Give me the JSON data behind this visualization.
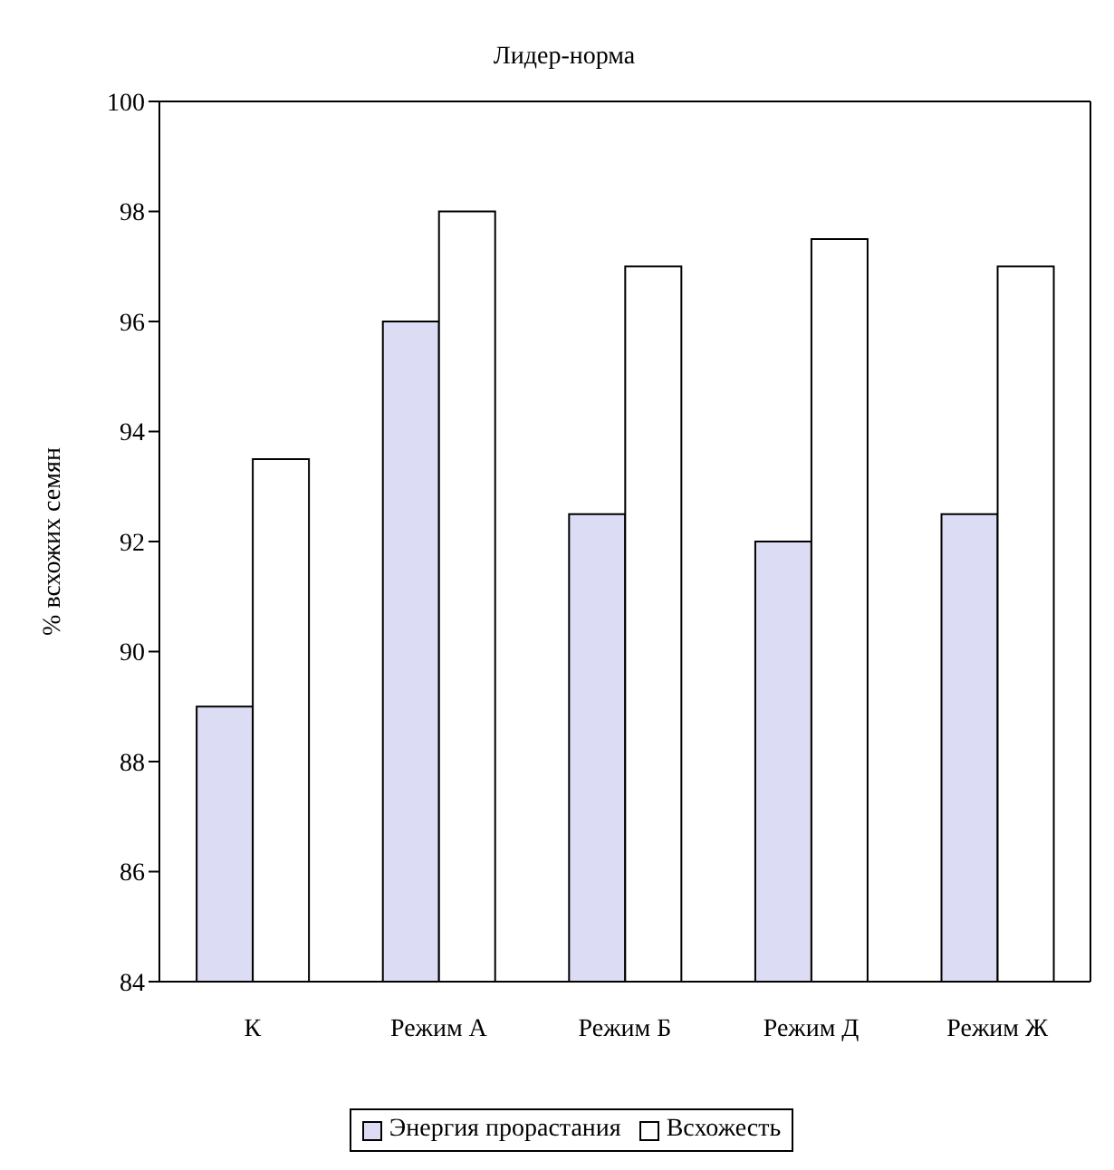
{
  "chart_data": {
    "type": "bar",
    "title": "Лидер-норма",
    "ylabel": "% всхожих семян",
    "categories": [
      "К",
      "Режим А",
      "Режим Б",
      "Режим Д",
      "Режим Ж"
    ],
    "series": [
      {
        "name": "Энергия прорастания",
        "color": "#dcdcf4",
        "values": [
          89,
          96,
          92.5,
          92,
          92.5
        ]
      },
      {
        "name": "Всхожесть",
        "color": "#ffffff",
        "values": [
          93.5,
          98,
          97,
          97.5,
          97
        ]
      }
    ],
    "ylim": [
      84,
      100
    ],
    "yticks": [
      84,
      86,
      88,
      90,
      92,
      94,
      96,
      98,
      100
    ],
    "grid": false,
    "legend": "bottom"
  }
}
